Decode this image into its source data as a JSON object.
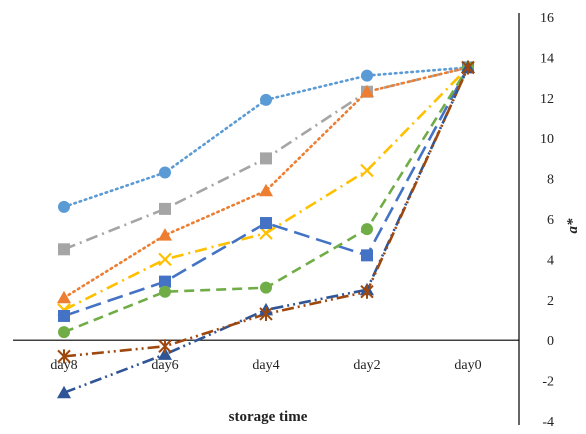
{
  "chart_data": {
    "type": "line",
    "title": "",
    "xlabel": "storage time",
    "ylabel": "a*",
    "categories": [
      "day8",
      "day6",
      "day4",
      "day2",
      "day0"
    ],
    "ylim": [
      -4,
      16
    ],
    "yticks": [
      -4,
      -2,
      0,
      2,
      4,
      6,
      8,
      10,
      12,
      14,
      16
    ],
    "y_axis_position": "right",
    "grid": false,
    "legend": "none",
    "series": [
      {
        "values": [
          6.6,
          8.3,
          11.9,
          13.1,
          13.5
        ],
        "color": "#5B9BD5",
        "marker": "circle",
        "dash": "dotted"
      },
      {
        "values": [
          4.5,
          6.5,
          9.0,
          12.3,
          13.5
        ],
        "color": "#A5A5A5",
        "marker": "square",
        "dash": "dashdot"
      },
      {
        "values": [
          2.1,
          5.2,
          7.4,
          12.3,
          13.5
        ],
        "color": "#ED7D31",
        "marker": "triangle",
        "dash": "dotted"
      },
      {
        "values": [
          1.5,
          4.0,
          5.3,
          8.4,
          13.5
        ],
        "color": "#FFC000",
        "marker": "x",
        "dash": "dashdot"
      },
      {
        "values": [
          1.2,
          2.9,
          5.8,
          4.2,
          13.5
        ],
        "color": "#4472C4",
        "marker": "square",
        "dash": "longdash"
      },
      {
        "values": [
          0.4,
          2.4,
          2.6,
          5.5,
          13.5
        ],
        "color": "#70AD47",
        "marker": "circle",
        "dash": "dashed"
      },
      {
        "values": [
          -2.6,
          -0.7,
          1.5,
          2.5,
          13.5
        ],
        "color": "#2F5597",
        "marker": "triangle",
        "dash": "dashdotdot"
      },
      {
        "values": [
          -0.8,
          -0.3,
          1.3,
          2.4,
          13.5
        ],
        "color": "#9E480E",
        "marker": "star",
        "dash": "dashdotdot"
      }
    ]
  }
}
